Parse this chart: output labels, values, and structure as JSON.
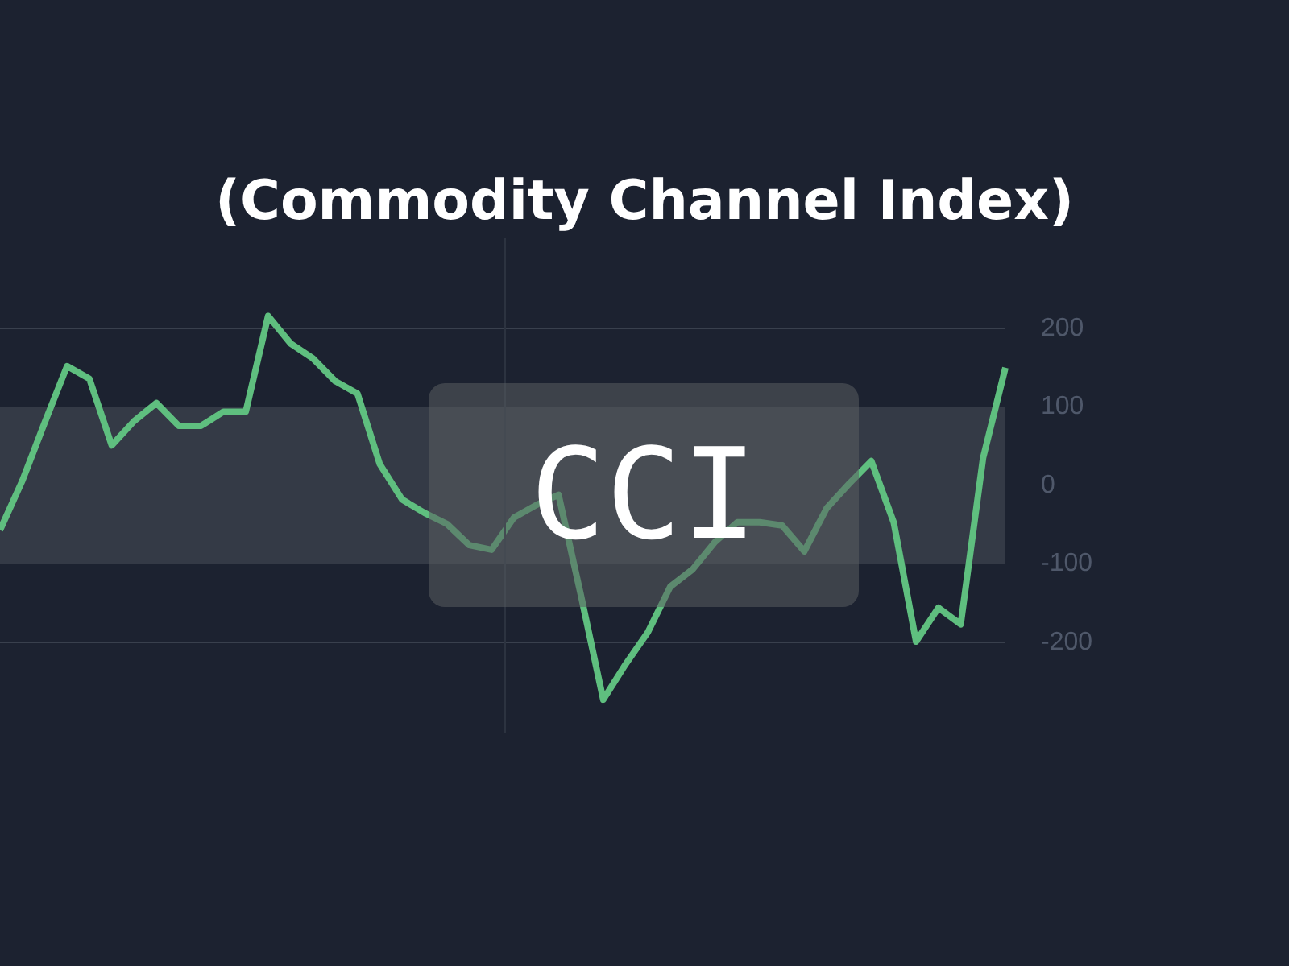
{
  "chart_data": {
    "type": "line",
    "title": "(Commodity Channel Index)",
    "annotations": [
      "CCI"
    ],
    "categories": [
      null,
      null,
      null,
      null,
      null,
      null,
      null,
      null,
      null,
      null,
      null,
      null,
      null,
      null,
      null,
      null,
      null,
      null,
      null,
      null,
      null,
      null,
      null,
      null,
      null,
      null,
      null,
      null,
      null,
      null,
      null,
      null,
      null,
      null,
      null,
      null,
      null,
      null,
      null,
      null,
      null,
      null,
      null,
      null,
      null,
      null
    ],
    "series": [
      {
        "color": "#5fbf7f",
        "values": [
          -57,
          6,
          80,
          152,
          136,
          51,
          82,
          105,
          76,
          76,
          94,
          94,
          216,
          181,
          162,
          133,
          117,
          27,
          -18,
          -35,
          -49,
          -76,
          -82,
          -41,
          -25,
          -12,
          -140,
          -273,
          -228,
          -187,
          -129,
          -107,
          -72,
          -47,
          -47,
          -51,
          -84,
          -29,
          2,
          31,
          -47,
          -199,
          -156,
          -177,
          35,
          150
        ]
      }
    ],
    "ylim": [
      -315,
      315
    ],
    "yticks": [
      -200,
      -100,
      0,
      100,
      200
    ],
    "grid": "y",
    "marker": "none",
    "line_style": "solid",
    "bands": [
      {
        "axis": "y",
        "from": -100,
        "to": 100,
        "color": "#343a46"
      }
    ]
  }
}
